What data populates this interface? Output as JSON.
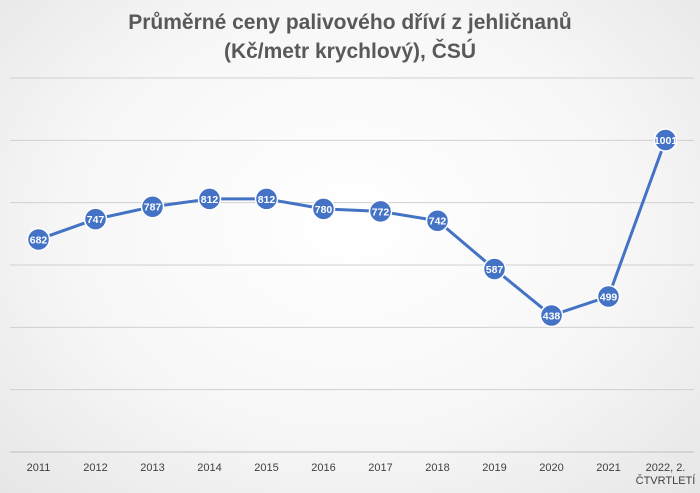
{
  "chart_data": {
    "type": "line",
    "title_line1": "Průměrné ceny palivového dříví z jehličnanů",
    "title_line2": "(Kč/metr krychlový), ČSÚ",
    "categories": [
      "2011",
      "2012",
      "2013",
      "2014",
      "2015",
      "2016",
      "2017",
      "2018",
      "2019",
      "2020",
      "2021",
      "2022, 2. čtvrtletí"
    ],
    "category_labels": [
      [
        "2011"
      ],
      [
        "2012"
      ],
      [
        "2013"
      ],
      [
        "2014"
      ],
      [
        "2015"
      ],
      [
        "2016"
      ],
      [
        "2017"
      ],
      [
        "2018"
      ],
      [
        "2019"
      ],
      [
        "2020"
      ],
      [
        "2021"
      ],
      [
        "2022, 2.",
        "ČTVRTLETÍ"
      ]
    ],
    "series": [
      {
        "values": [
          682,
          747,
          787,
          812,
          812,
          780,
          772,
          742,
          587,
          438,
          499,
          1001
        ]
      }
    ],
    "ylim": [
      0,
      1200
    ],
    "y_tick_step": 200,
    "y_tick_labels_visible": false,
    "grid": true,
    "data_labels": true,
    "legend": "none",
    "line_color": "#4472C4",
    "marker_color": "#4472C4",
    "gridline_color": "#d0d0d0"
  }
}
